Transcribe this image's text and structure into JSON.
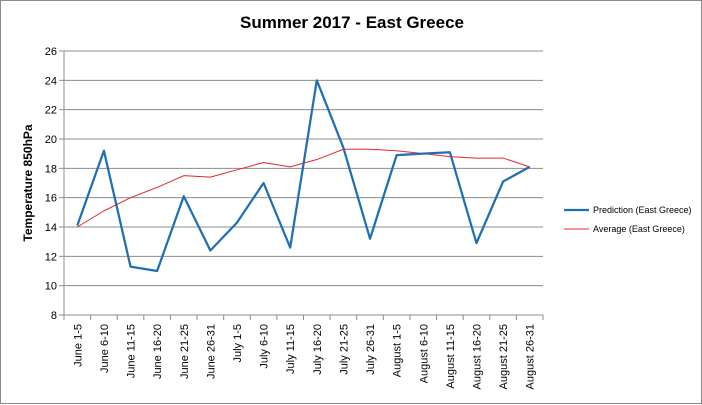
{
  "chart_data": {
    "type": "line",
    "title": "Summer 2017 - East Greece",
    "xlabel": "",
    "ylabel": "Temperature 850hPa",
    "ylim": [
      8,
      26
    ],
    "yticks": [
      8,
      10,
      12,
      14,
      16,
      18,
      20,
      22,
      24,
      26
    ],
    "grid": true,
    "legend_position": "right",
    "categories": [
      "June 1-5",
      "June 6-10",
      "June 11-15",
      "June 16-20",
      "June 21-25",
      "June 26-31",
      "July 1-5",
      "July 6-10",
      "July 11-15",
      "July 16-20",
      "July 21-25",
      "July 26-31",
      "August 1-5",
      "August 6-10",
      "August 11-15",
      "August 16-20",
      "August 21-25",
      "August 26-31"
    ],
    "series": [
      {
        "name": "Prediction (East Greece)",
        "color": "#1f6fb4",
        "values": [
          14.1,
          19.2,
          11.3,
          11.0,
          16.1,
          12.4,
          14.3,
          17.0,
          12.6,
          24.0,
          19.4,
          13.2,
          18.9,
          19.0,
          19.1,
          12.9,
          17.1,
          18.1
        ]
      },
      {
        "name": "Average (East Greece)",
        "color": "#e8262a",
        "values": [
          14.0,
          15.1,
          16.0,
          16.7,
          17.5,
          17.4,
          17.9,
          18.4,
          18.1,
          18.6,
          19.3,
          19.3,
          19.2,
          19.0,
          18.8,
          18.7,
          18.7,
          18.1
        ]
      }
    ]
  }
}
